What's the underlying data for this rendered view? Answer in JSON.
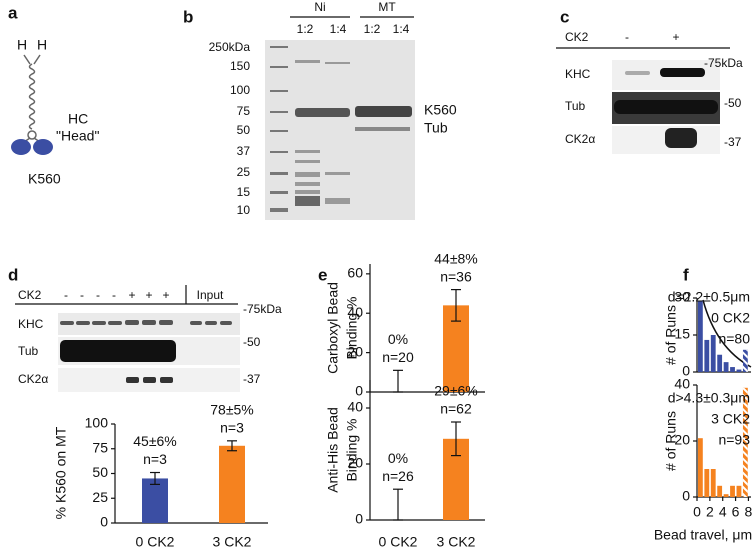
{
  "panels": {
    "labels": [
      "a",
      "b",
      "c",
      "d",
      "e",
      "f"
    ]
  },
  "motor": {
    "heads": [
      "H",
      "H"
    ],
    "hc": "HC",
    "head": "\"Head\"",
    "name": "K560"
  },
  "gel_b": {
    "markers": [
      "250kDa",
      "150",
      "100",
      "75",
      "50",
      "37",
      "25",
      "15",
      "10"
    ],
    "groups": [
      "Ni",
      "MT"
    ],
    "ratios": [
      "1:2",
      "1:4",
      "1:2",
      "1:4"
    ],
    "bands": [
      "K560",
      "Tub"
    ]
  },
  "gel_c": {
    "condition": "CK2",
    "lanes": [
      "-",
      "+"
    ],
    "rows": [
      "KHC",
      "Tub",
      "CK2α"
    ],
    "markers": [
      "-75kDa",
      "-50",
      "-37"
    ]
  },
  "gel_d": {
    "condition": "CK2",
    "lanes": [
      "-",
      "-",
      "-",
      "-",
      "+",
      "+",
      "+"
    ],
    "input": "Input",
    "rows": [
      "KHC",
      "Tub",
      "CK2α"
    ],
    "markers": [
      "-75kDa",
      "-50",
      "-37"
    ]
  },
  "chart_data": [
    {
      "type": "bar",
      "ylabel": "% K560 on MT",
      "categories": [
        "0 CK2",
        "3 CK2"
      ],
      "values": [
        45,
        78
      ],
      "errors": [
        6,
        5
      ],
      "value_labels": [
        "45±6%",
        "78±5%"
      ],
      "annotations": [
        "n=3",
        "n=3"
      ],
      "colors": [
        "#3b4ea3",
        "#f5821f"
      ],
      "ylim": [
        0,
        100
      ],
      "yticks": [
        0,
        25,
        50,
        75,
        100
      ]
    },
    {
      "type": "bar",
      "ylabel": [
        "Carboxyl Bead",
        "Binding %"
      ],
      "values": [
        0,
        44
      ],
      "errors": [
        11,
        8
      ],
      "value_labels": [
        "0%",
        "44±8%"
      ],
      "annotations": [
        "n=20",
        "n=36"
      ],
      "colors": [
        "#3b4ea3",
        "#f5821f"
      ],
      "ylim": [
        0,
        65
      ],
      "yticks": [
        0,
        20,
        40,
        60
      ]
    },
    {
      "type": "bar",
      "ylabel": [
        "Anti-His Bead",
        "Binding %"
      ],
      "categories": [
        "0 CK2",
        "3 CK2"
      ],
      "values": [
        0,
        29
      ],
      "errors": [
        11,
        6
      ],
      "value_labels": [
        "0%",
        "29±6%"
      ],
      "annotations": [
        "n=26",
        "n=62"
      ],
      "colors": [
        "#3b4ea3",
        "#f5821f"
      ],
      "ylim": [
        0,
        50
      ],
      "yticks": [
        0,
        20,
        40
      ]
    },
    {
      "type": "histogram",
      "ylabel": "# of Runs",
      "bins": [
        0,
        1,
        2,
        3,
        4,
        5,
        6,
        7,
        8
      ],
      "values": [
        29,
        13,
        15,
        7,
        4,
        2,
        1,
        9
      ],
      "hatched": [
        false,
        false,
        false,
        false,
        false,
        false,
        false,
        true
      ],
      "color": "#3b4ea3",
      "xlim": [
        0,
        8.4
      ],
      "ylim": [
        0,
        30
      ],
      "yticks": [
        0,
        15,
        30
      ],
      "annotations": [
        "d=2.2±0.5μm",
        "0 CK2",
        "n=80"
      ]
    },
    {
      "type": "histogram",
      "ylabel": "# of Runs",
      "xlabel": "Bead travel, μm",
      "bins": [
        0,
        1,
        2,
        3,
        4,
        5,
        6,
        7,
        8
      ],
      "values": [
        21,
        10,
        10,
        4,
        1,
        4,
        4,
        39
      ],
      "hatched": [
        false,
        false,
        false,
        false,
        false,
        false,
        false,
        true
      ],
      "color": "#f5821f",
      "xlim": [
        0,
        8.4
      ],
      "ylim": [
        0,
        40
      ],
      "yticks": [
        0,
        20,
        40
      ],
      "xticks": [
        0,
        2,
        4,
        6,
        8
      ],
      "annotations": [
        "d>4.3±0.3μm",
        "3 CK2",
        "n=93"
      ]
    }
  ]
}
